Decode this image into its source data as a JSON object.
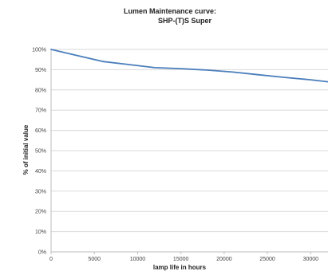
{
  "chart_data": {
    "type": "line",
    "title_lines": [
      "Lumen Maintenance curve:",
      "SHP-(T)S Super"
    ],
    "xlabel": "lamp life in hours",
    "ylabel": "% of initial value",
    "xlim": [
      0,
      32000
    ],
    "ylim": [
      0,
      100
    ],
    "x_ticks": [
      0,
      5000,
      10000,
      15000,
      20000,
      25000,
      30000
    ],
    "x_tick_labels": [
      "0",
      "5000",
      "10000",
      "15000",
      "20000",
      "25000",
      "30000"
    ],
    "y_ticks": [
      0,
      10,
      20,
      30,
      40,
      50,
      60,
      70,
      80,
      90,
      100
    ],
    "y_tick_labels": [
      "0%",
      "10%",
      "20%",
      "30%",
      "40%",
      "50%",
      "60%",
      "70%",
      "80%",
      "90%",
      "100%"
    ],
    "grid": true,
    "series": [
      {
        "color": "#4a7ebb",
        "x": [
          0,
          3000,
          6000,
          9000,
          12000,
          15000,
          18000,
          21000,
          24000,
          27000,
          30000,
          32000
        ],
        "y": [
          100,
          97,
          94,
          92.5,
          91,
          90.5,
          89.8,
          88.8,
          87.5,
          86.2,
          85,
          84
        ]
      }
    ]
  }
}
